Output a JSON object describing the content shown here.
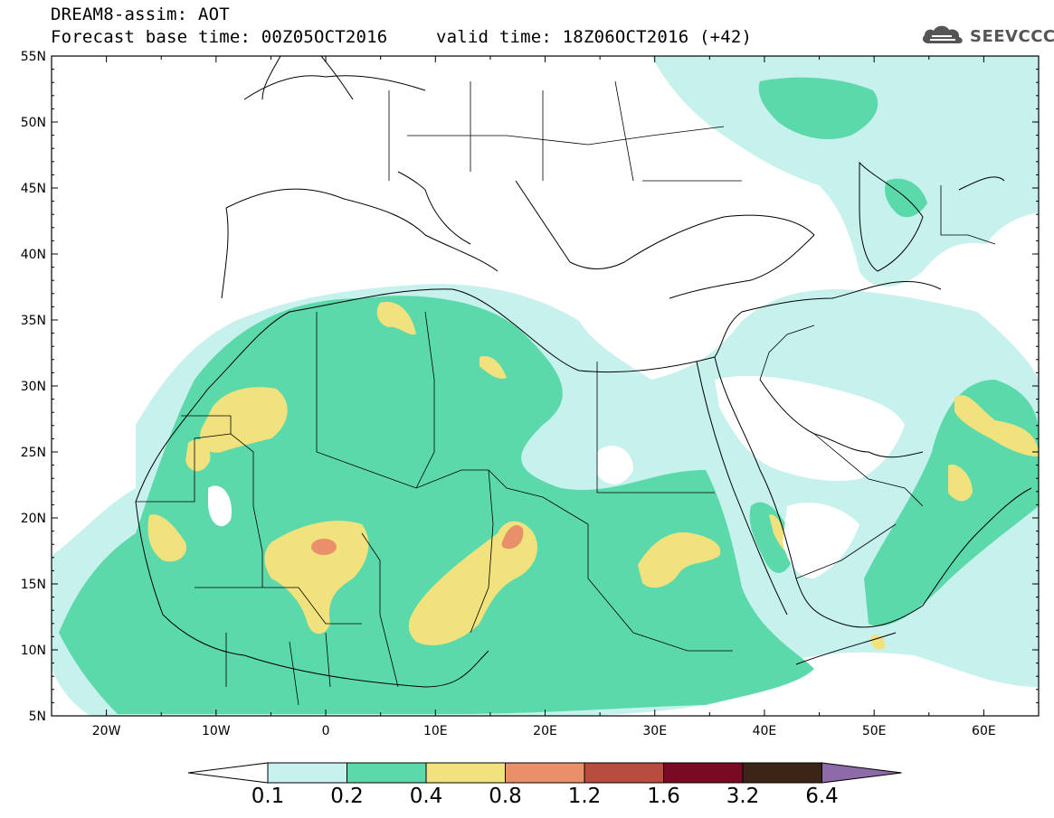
{
  "header": {
    "title": "DREAM8-assim: AOT",
    "base_time": "Forecast base time: 00Z05OCT2016",
    "valid_time": "valid time: 18Z06OCT2016 (+42)"
  },
  "logo": {
    "text": "SEEVCCC",
    "icon": "cloud-logo-icon"
  },
  "map": {
    "lon_range": [
      -25,
      65
    ],
    "lat_range": [
      5,
      55
    ],
    "lon_ticks": [
      "20W",
      "10W",
      "0",
      "10E",
      "20E",
      "30E",
      "40E",
      "50E",
      "60E"
    ],
    "lat_ticks": [
      "55N",
      "50N",
      "45N",
      "40N",
      "35N",
      "30N",
      "25N",
      "20N",
      "15N",
      "10N",
      "5N"
    ]
  },
  "colorbar": {
    "labels": [
      "0.1",
      "0.2",
      "0.4",
      "0.8",
      "1.2",
      "1.6",
      "3.2",
      "6.4"
    ],
    "colors": [
      "#c6f1ec",
      "#5cd9ab",
      "#f2e27d",
      "#e8906a",
      "#b84c3e",
      "#7a0a24",
      "#3b2517",
      "#8d6aa8"
    ]
  },
  "colors": {
    "level_0_1": "#c6f1ec",
    "level_0_2": "#5cd9ab",
    "level_0_4": "#f2e27d",
    "level_0_8": "#e8906a"
  }
}
